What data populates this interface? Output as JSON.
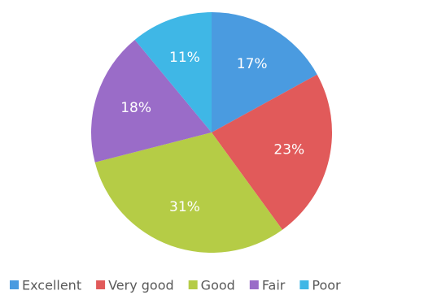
{
  "chart_data": {
    "type": "pie",
    "title": "",
    "start_angle_deg": 0,
    "direction": "clockwise",
    "slices": [
      {
        "name": "Excellent",
        "value": 17,
        "label": "17%",
        "color": "#4A9BE0"
      },
      {
        "name": "Very good",
        "value": 23,
        "label": "23%",
        "color": "#E15A5A"
      },
      {
        "name": "Good",
        "value": 31,
        "label": "31%",
        "color": "#B5CC46"
      },
      {
        "name": "Fair",
        "value": 18,
        "label": "18%",
        "color": "#9A6CC8"
      },
      {
        "name": "Poor",
        "value": 11,
        "label": "11%",
        "color": "#3FB7E6"
      }
    ],
    "legend": {
      "position": "bottom"
    }
  }
}
